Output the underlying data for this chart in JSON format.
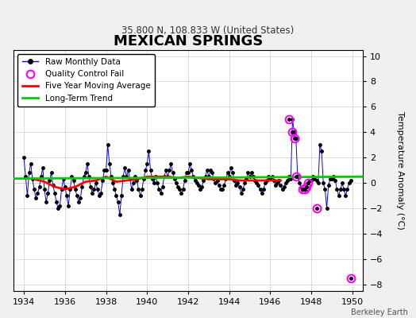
{
  "title": "MEXICAN SPRINGS",
  "subtitle": "35.800 N, 108.833 W (United States)",
  "xlabel": "",
  "ylabel": "Temperature Anomaly (°C)",
  "credit": "Berkeley Earth",
  "xlim": [
    1933.5,
    1950.5
  ],
  "ylim": [
    -8.5,
    10.5
  ],
  "yticks": [
    -8,
    -6,
    -4,
    -2,
    0,
    2,
    4,
    6,
    8,
    10
  ],
  "xticks": [
    1934,
    1936,
    1938,
    1940,
    1942,
    1944,
    1946,
    1948,
    1950
  ],
  "background_color": "#f0f0f0",
  "plot_bg_color": "#ffffff",
  "raw_x": [
    1934.0,
    1934.083,
    1934.167,
    1934.25,
    1934.333,
    1934.417,
    1934.5,
    1934.583,
    1934.667,
    1934.75,
    1934.833,
    1934.917,
    1935.0,
    1935.083,
    1935.167,
    1935.25,
    1935.333,
    1935.417,
    1935.5,
    1935.583,
    1935.667,
    1935.75,
    1935.833,
    1935.917,
    1936.0,
    1936.083,
    1936.167,
    1936.25,
    1936.333,
    1936.417,
    1936.5,
    1936.583,
    1936.667,
    1936.75,
    1936.833,
    1936.917,
    1937.0,
    1937.083,
    1937.167,
    1937.25,
    1937.333,
    1937.417,
    1937.5,
    1937.583,
    1937.667,
    1937.75,
    1937.833,
    1937.917,
    1938.0,
    1938.083,
    1938.167,
    1938.25,
    1938.333,
    1938.417,
    1938.5,
    1938.583,
    1938.667,
    1938.75,
    1938.833,
    1938.917,
    1939.0,
    1939.083,
    1939.167,
    1939.25,
    1939.333,
    1939.417,
    1939.5,
    1939.583,
    1939.667,
    1939.75,
    1939.833,
    1939.917,
    1940.0,
    1940.083,
    1940.167,
    1940.25,
    1940.333,
    1940.417,
    1940.5,
    1940.583,
    1940.667,
    1940.75,
    1940.833,
    1940.917,
    1941.0,
    1941.083,
    1941.167,
    1941.25,
    1941.333,
    1941.417,
    1941.5,
    1941.583,
    1941.667,
    1941.75,
    1941.833,
    1941.917,
    1942.0,
    1942.083,
    1942.167,
    1942.25,
    1942.333,
    1942.417,
    1942.5,
    1942.583,
    1942.667,
    1942.75,
    1942.833,
    1942.917,
    1943.0,
    1943.083,
    1943.167,
    1943.25,
    1943.333,
    1943.417,
    1943.5,
    1943.583,
    1943.667,
    1943.75,
    1943.833,
    1943.917,
    1944.0,
    1944.083,
    1944.167,
    1944.25,
    1944.333,
    1944.417,
    1944.5,
    1944.583,
    1944.667,
    1944.75,
    1944.833,
    1944.917,
    1945.0,
    1945.083,
    1945.167,
    1945.25,
    1945.333,
    1945.417,
    1945.5,
    1945.583,
    1945.667,
    1945.75,
    1945.833,
    1945.917,
    1946.0,
    1946.083,
    1946.167,
    1946.25,
    1946.333,
    1946.417,
    1946.5,
    1946.583,
    1946.667,
    1946.75,
    1946.833,
    1946.917,
    1947.0,
    1947.083,
    1947.167,
    1947.25,
    1947.333,
    1947.417,
    1947.5,
    1947.583,
    1947.667,
    1947.75,
    1947.833,
    1947.917,
    1948.0,
    1948.083,
    1948.167,
    1948.25,
    1948.333,
    1948.417,
    1948.5,
    1948.583,
    1948.667,
    1948.75,
    1948.833,
    1948.917,
    1949.0,
    1949.083,
    1949.167,
    1949.25,
    1949.333,
    1949.417,
    1949.5,
    1949.583,
    1949.667,
    1949.75,
    1949.833,
    1949.917
  ],
  "raw_y": [
    2.0,
    0.5,
    -1.0,
    0.8,
    1.5,
    0.3,
    -0.5,
    -1.2,
    -0.8,
    -0.3,
    0.5,
    1.2,
    -0.5,
    -1.5,
    -0.8,
    0.2,
    0.8,
    -0.2,
    -0.8,
    -1.5,
    -2.0,
    -1.8,
    -0.5,
    0.3,
    -0.3,
    -1.0,
    -1.8,
    -0.5,
    0.5,
    0.2,
    -0.5,
    -1.0,
    -1.5,
    -1.2,
    -0.3,
    0.5,
    0.8,
    1.5,
    0.5,
    -0.3,
    -0.8,
    -0.5,
    0.0,
    -0.5,
    -1.0,
    -0.8,
    0.2,
    1.0,
    1.0,
    3.0,
    1.5,
    0.5,
    0.0,
    -0.5,
    -1.0,
    -1.5,
    -2.5,
    -1.0,
    0.5,
    1.2,
    0.5,
    1.0,
    0.3,
    -0.5,
    0.0,
    0.5,
    0.2,
    -0.5,
    -1.0,
    -0.5,
    0.3,
    1.0,
    1.5,
    2.5,
    1.0,
    0.3,
    0.0,
    0.5,
    0.0,
    -0.5,
    -0.8,
    -0.3,
    0.5,
    1.0,
    0.5,
    1.0,
    1.5,
    0.8,
    0.3,
    0.0,
    -0.3,
    -0.5,
    -0.8,
    -0.5,
    0.2,
    0.8,
    0.8,
    1.5,
    1.0,
    0.5,
    0.2,
    0.0,
    -0.2,
    -0.5,
    -0.3,
    0.2,
    0.5,
    1.0,
    0.5,
    1.0,
    0.8,
    0.3,
    0.0,
    0.2,
    -0.2,
    -0.5,
    -0.5,
    -0.2,
    0.3,
    0.8,
    0.5,
    1.2,
    0.8,
    0.2,
    -0.2,
    0.0,
    -0.3,
    -0.8,
    -0.5,
    0.0,
    0.3,
    0.8,
    0.5,
    0.8,
    0.5,
    0.2,
    0.0,
    -0.2,
    -0.5,
    -0.8,
    -0.5,
    0.0,
    0.2,
    0.5,
    0.3,
    0.5,
    0.2,
    -0.2,
    0.0,
    0.2,
    -0.2,
    -0.5,
    -0.3,
    0.0,
    0.2,
    0.5,
    0.3,
    5.0,
    4.0,
    3.5,
    0.5,
    0.0,
    -0.3,
    -0.5,
    -0.5,
    -0.3,
    0.0,
    0.2,
    0.2,
    0.5,
    0.3,
    0.2,
    0.0,
    3.0,
    2.5,
    0.0,
    -0.5,
    -2.0,
    -0.2,
    0.3,
    0.3,
    0.5,
    0.2,
    -0.5,
    -1.0,
    -0.5,
    0.0,
    -0.5,
    -1.0,
    -0.5,
    0.0,
    0.2
  ],
  "qc_fail_x": [
    1946.917,
    1947.083,
    1947.167,
    1947.25,
    1947.583,
    1947.667,
    1947.75,
    1947.833,
    1948.25,
    1949.917
  ],
  "qc_fail_y": [
    5.0,
    4.0,
    3.5,
    0.5,
    -0.5,
    -0.5,
    -0.3,
    0.0,
    -2.0,
    -7.5
  ],
  "moving_avg_x": [
    1934.5,
    1935.0,
    1935.5,
    1936.0,
    1936.5,
    1937.0,
    1937.5,
    1938.0,
    1938.5,
    1939.0,
    1939.5,
    1940.0,
    1940.5,
    1941.0,
    1941.5,
    1942.0,
    1942.5,
    1943.0,
    1943.5,
    1944.0,
    1944.5,
    1945.0,
    1945.5,
    1946.0,
    1946.5
  ],
  "moving_avg_y": [
    0.3,
    0.1,
    -0.3,
    -0.5,
    -0.3,
    0.1,
    0.2,
    0.5,
    0.1,
    0.2,
    0.3,
    0.5,
    0.5,
    0.5,
    0.4,
    0.5,
    0.4,
    0.3,
    0.3,
    0.3,
    0.2,
    0.2,
    0.2,
    0.2,
    0.2
  ],
  "trend_x": [
    1933.5,
    1950.5
  ],
  "trend_y": [
    0.35,
    0.5
  ],
  "line_color": "#0000ff",
  "dot_color": "#000000",
  "qc_color": "#ff00ff",
  "moving_avg_color": "#ff0000",
  "trend_color": "#00cc00"
}
